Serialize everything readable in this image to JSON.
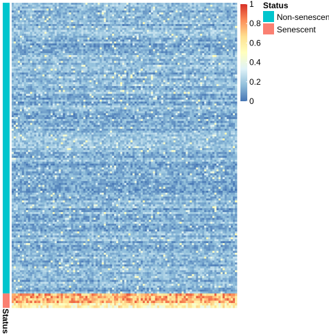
{
  "chart_data": {
    "type": "heatmap",
    "title": "",
    "xlabel": "",
    "ylabel": "",
    "color_scale": {
      "range": [
        0,
        1
      ],
      "ticks": [
        "0",
        "0.2",
        "0.4",
        "0.6",
        "0.8",
        "1"
      ],
      "tick_values": [
        0,
        0.2,
        0.4,
        0.6,
        0.8,
        1
      ],
      "colors": [
        "#4575b4",
        "#91bfdb",
        "#e0f3f8",
        "#ffffbf",
        "#fee090",
        "#fc8d59",
        "#d73027"
      ]
    },
    "row_annotation": {
      "label": "Status",
      "categories": [
        {
          "name": "Non-senescent",
          "color": "#00c5cd",
          "row_fraction": 0.953
        },
        {
          "name": "Senescent",
          "color": "#fa8072",
          "row_fraction": 0.047
        }
      ]
    },
    "approx_values": {
      "Non-senescent_rows": 0.15,
      "Senescent_rows": 0.75
    },
    "legend": {
      "title": "Status",
      "position": "right"
    }
  }
}
